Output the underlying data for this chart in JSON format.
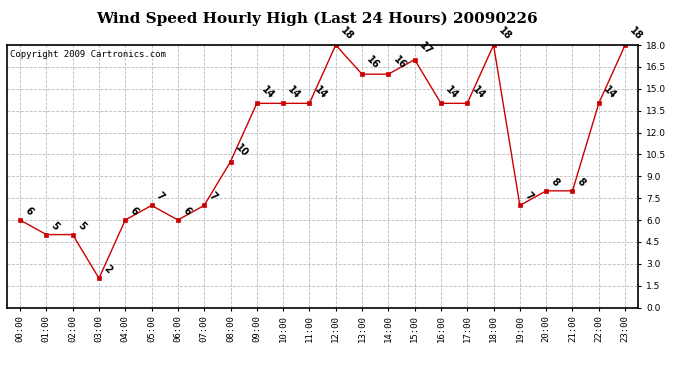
{
  "title": "Wind Speed Hourly High (Last 24 Hours) 20090226",
  "copyright": "Copyright 2009 Cartronics.com",
  "hours": [
    "00:00",
    "01:00",
    "02:00",
    "03:00",
    "04:00",
    "05:00",
    "06:00",
    "07:00",
    "08:00",
    "09:00",
    "10:00",
    "11:00",
    "12:00",
    "13:00",
    "14:00",
    "15:00",
    "16:00",
    "17:00",
    "18:00",
    "19:00",
    "20:00",
    "21:00",
    "22:00",
    "23:00"
  ],
  "values": [
    6,
    5,
    5,
    2,
    6,
    7,
    6,
    7,
    10,
    14,
    14,
    14,
    18,
    16,
    16,
    17,
    14,
    14,
    18,
    7,
    8,
    8,
    14,
    18
  ],
  "ylim": [
    0,
    18.0
  ],
  "yticks": [
    0.0,
    1.5,
    3.0,
    4.5,
    6.0,
    7.5,
    9.0,
    10.5,
    12.0,
    13.5,
    15.0,
    16.5,
    18.0
  ],
  "line_color": "#cc0000",
  "marker_color": "#cc0000",
  "bg_color": "#ffffff",
  "plot_bg_color": "#ffffff",
  "grid_color": "#bbbbbb",
  "title_fontsize": 11,
  "label_fontsize": 6.5,
  "annot_fontsize": 7,
  "copyright_fontsize": 6.5
}
